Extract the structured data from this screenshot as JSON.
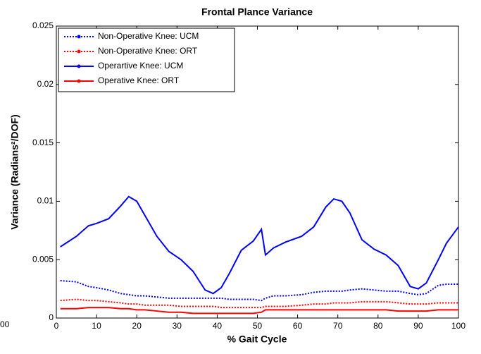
{
  "chart_data": {
    "type": "line",
    "title": "Frontal Plance Variance",
    "xlabel": "% Gait Cycle",
    "ylabel": "Variance (Radians²/DOF)",
    "stray_text": "00",
    "x": [
      1,
      5,
      8,
      10,
      13,
      16,
      18,
      20,
      22,
      25,
      28,
      31,
      34,
      37,
      39,
      41,
      43,
      46,
      49,
      51,
      52,
      54,
      57,
      61,
      64,
      67,
      69,
      71,
      73,
      76,
      79,
      82,
      85,
      88,
      90,
      92,
      95,
      97,
      100
    ],
    "series": [
      {
        "name": "Non-Operative Knee: UCM",
        "color": "#0000ff",
        "dash": "dotted",
        "values": [
          0.0032,
          0.0031,
          0.0027,
          0.0026,
          0.0024,
          0.0021,
          0.002,
          0.0019,
          0.0019,
          0.0018,
          0.0017,
          0.0017,
          0.0017,
          0.0017,
          0.0017,
          0.0017,
          0.0016,
          0.0016,
          0.0016,
          0.0015,
          0.0017,
          0.0019,
          0.0019,
          0.002,
          0.0022,
          0.0023,
          0.0023,
          0.0023,
          0.0024,
          0.0025,
          0.0024,
          0.0023,
          0.0023,
          0.0021,
          0.002,
          0.0021,
          0.0028,
          0.0029,
          0.0029
        ]
      },
      {
        "name": "Non-Operative Knee: ORT",
        "color": "#ff0000",
        "dash": "dotted",
        "values": [
          0.0015,
          0.0016,
          0.0015,
          0.0015,
          0.0014,
          0.0013,
          0.0012,
          0.0012,
          0.0011,
          0.0011,
          0.0011,
          0.001,
          0.001,
          0.001,
          0.001,
          0.0009,
          0.0009,
          0.0009,
          0.0009,
          0.0009,
          0.001,
          0.001,
          0.001,
          0.0011,
          0.0012,
          0.0012,
          0.0013,
          0.0013,
          0.0013,
          0.0014,
          0.0014,
          0.0014,
          0.0013,
          0.0012,
          0.0012,
          0.0012,
          0.0013,
          0.0013,
          0.0013
        ]
      },
      {
        "name": "Operartive Knee: UCM",
        "color": "#0000ff",
        "dash": "solid",
        "values": [
          0.0061,
          0.007,
          0.0079,
          0.0081,
          0.0085,
          0.0096,
          0.0104,
          0.01,
          0.0088,
          0.007,
          0.0057,
          0.005,
          0.004,
          0.0024,
          0.0021,
          0.0026,
          0.0038,
          0.0058,
          0.0066,
          0.0076,
          0.0054,
          0.006,
          0.0065,
          0.007,
          0.0078,
          0.0095,
          0.0102,
          0.01,
          0.009,
          0.0067,
          0.0059,
          0.0054,
          0.0045,
          0.0027,
          0.0025,
          0.003,
          0.005,
          0.0064,
          0.0078
        ]
      },
      {
        "name": "Operative Knee: ORT",
        "color": "#ff0000",
        "dash": "solid",
        "values": [
          0.0008,
          0.0008,
          0.0009,
          0.0009,
          0.0009,
          0.0008,
          0.0008,
          0.0007,
          0.0007,
          0.0006,
          0.0005,
          0.0005,
          0.0004,
          0.0004,
          0.0004,
          0.0004,
          0.0004,
          0.0004,
          0.0004,
          0.0005,
          0.0007,
          0.0007,
          0.0007,
          0.0007,
          0.0007,
          0.0007,
          0.0007,
          0.0007,
          0.0007,
          0.0007,
          0.0007,
          0.0007,
          0.0006,
          0.0006,
          0.0006,
          0.0006,
          0.0007,
          0.0007,
          0.0007
        ]
      }
    ],
    "xlim": [
      0,
      100
    ],
    "xticks": [
      0,
      10,
      20,
      30,
      40,
      50,
      60,
      70,
      80,
      90,
      100
    ],
    "ylim": [
      0,
      0.025
    ],
    "yticks": [
      0,
      0.005,
      0.01,
      0.015,
      0.02,
      0.025
    ],
    "legend": "upper left"
  }
}
